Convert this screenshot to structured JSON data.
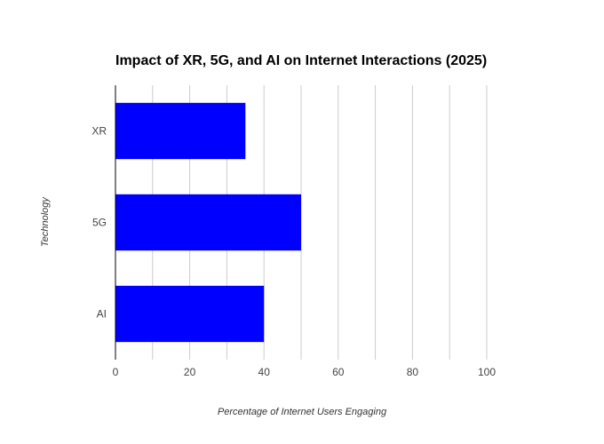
{
  "chart_data": {
    "type": "bar",
    "orientation": "horizontal",
    "title": "Impact of XR, 5G, and AI on Internet Interactions (2025)",
    "xlabel": "Percentage of Internet Users Engaging",
    "ylabel": "Technology",
    "categories": [
      "XR",
      "5G",
      "AI"
    ],
    "values": [
      35,
      50,
      40
    ],
    "xlim": [
      0,
      100
    ],
    "xticks": [
      0,
      20,
      40,
      60,
      80,
      100
    ],
    "grid": true,
    "bar_color": "#0000ff",
    "grid_color": "#cccccc"
  }
}
